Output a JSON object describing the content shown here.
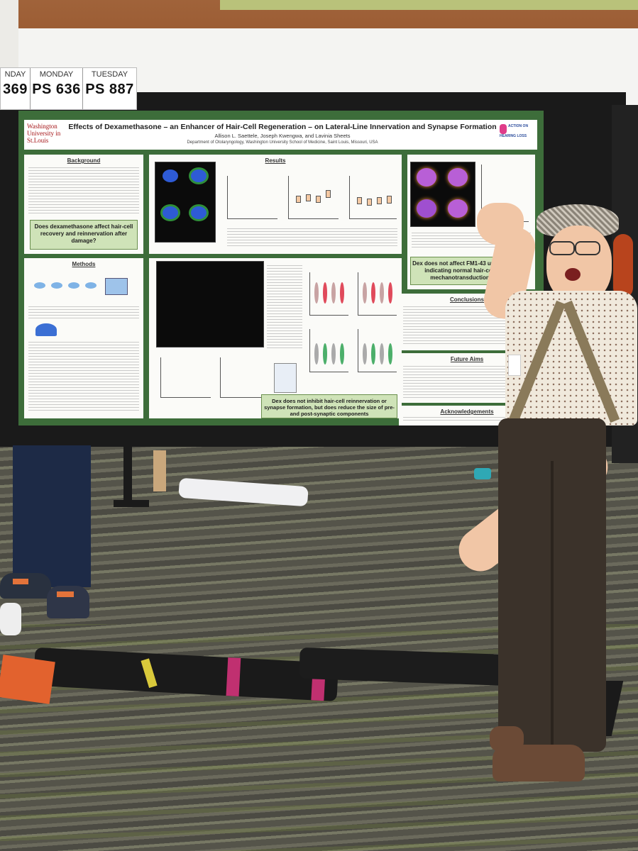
{
  "schedule": {
    "days": [
      {
        "day": "NDAY",
        "code": "369"
      },
      {
        "day": "MONDAY",
        "code": "PS 636"
      },
      {
        "day": "TUESDAY",
        "code": "PS 887"
      }
    ]
  },
  "poster": {
    "logo_text": "Washington University in St.Louis",
    "title": "Effects of Dexamethasone – an Enhancer of Hair-Cell Regeneration – on Lateral-Line Innervation and Synapse Formation",
    "authors": "Allison L. Saettele, Joseph Kwengwa, and Lavinia Sheets",
    "affiliation": "Department of Otolaryngology, Washington University School of Medicine, Saint Louis, Missouri, USA",
    "sponsor_logo": "ACTION ON HEARING LOSS",
    "sections": {
      "background": "Background",
      "methods": "Methods",
      "results": "Results",
      "conclusions": "Conclusions",
      "future_aims": "Future Aims",
      "acknowledgements": "Acknowledgements"
    },
    "callouts": {
      "question": "Does dexamethasone affect hair-cell recovery and reinnervation after damage?",
      "fm143": "Dex does not affect FM1-43 uptake, indicating normal hair-cell mechanotransduction",
      "synapse": "Dex does not inhibit hair-cell reinnervation or synapse formation, but does reduce the size of pre- and post-synaptic components"
    }
  },
  "colors": {
    "poster_green": "#3d6d3a",
    "callout_green": "#cfe3b8",
    "university_red": "#a51417"
  }
}
